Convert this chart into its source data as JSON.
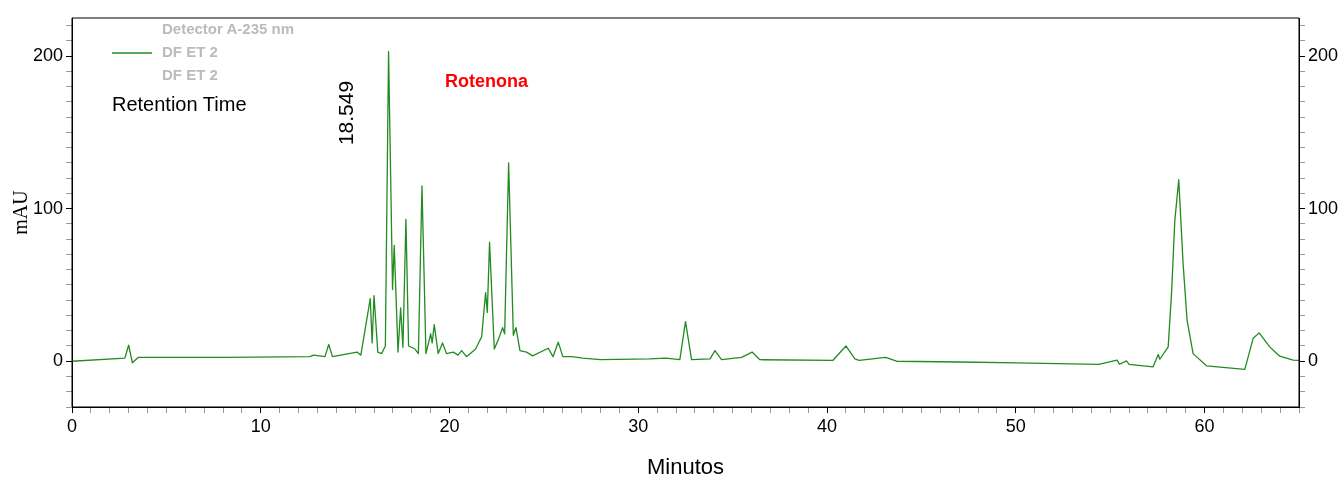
{
  "chart_data": {
    "type": "line",
    "xlabel": "Minutos",
    "ylabel": "mAU",
    "legend_title": "Detector A-235 nm",
    "legend": "top left",
    "grid": false,
    "marker": "none",
    "line_style": "solid",
    "xlim": [
      0,
      65
    ],
    "ylim": [
      -30,
      225
    ],
    "y2lim": [
      -30,
      225
    ],
    "xticks": [
      0,
      {
        "value": 1,
        "label": null
      },
      {
        "value": 2,
        "label": null
      },
      {
        "value": 3,
        "label": null
      },
      {
        "value": 4,
        "label": null
      },
      {
        "value": 5,
        "label": null
      },
      {
        "value": 6,
        "label": null
      },
      {
        "value": 7,
        "label": null
      },
      {
        "value": 8,
        "label": null
      },
      {
        "value": 9,
        "label": null
      },
      10,
      {
        "value": 11,
        "label": null
      },
      {
        "value": 12,
        "label": null
      },
      {
        "value": 13,
        "label": null
      },
      {
        "value": 14,
        "label": null
      },
      {
        "value": 15,
        "label": null
      },
      {
        "value": 16,
        "label": null
      },
      {
        "value": 17,
        "label": null
      },
      {
        "value": 18,
        "label": null
      },
      {
        "value": 19,
        "label": null
      },
      20,
      {
        "value": 21,
        "label": null
      },
      {
        "value": 22,
        "label": null
      },
      {
        "value": 23,
        "label": null
      },
      {
        "value": 24,
        "label": null
      },
      {
        "value": 25,
        "label": null
      },
      {
        "value": 26,
        "label": null
      },
      {
        "value": 27,
        "label": null
      },
      {
        "value": 28,
        "label": null
      },
      {
        "value": 29,
        "label": null
      },
      30,
      {
        "value": 31,
        "label": null
      },
      {
        "value": 32,
        "label": null
      },
      {
        "value": 33,
        "label": null
      },
      {
        "value": 34,
        "label": null
      },
      {
        "value": 35,
        "label": null
      },
      {
        "value": 36,
        "label": null
      },
      {
        "value": 37,
        "label": null
      },
      {
        "value": 38,
        "label": null
      },
      {
        "value": 39,
        "label": null
      },
      40,
      {
        "value": 41,
        "label": null
      },
      {
        "value": 42,
        "label": null
      },
      {
        "value": 43,
        "label": null
      },
      {
        "value": 44,
        "label": null
      },
      {
        "value": 45,
        "label": null
      },
      {
        "value": 46,
        "label": null
      },
      {
        "value": 47,
        "label": null
      },
      {
        "value": 48,
        "label": null
      },
      {
        "value": 49,
        "label": null
      },
      50,
      {
        "value": 51,
        "label": null
      },
      {
        "value": 52,
        "label": null
      },
      {
        "value": 53,
        "label": null
      },
      {
        "value": 54,
        "label": null
      },
      {
        "value": 55,
        "label": null
      },
      {
        "value": 56,
        "label": null
      },
      {
        "value": 57,
        "label": null
      },
      {
        "value": 58,
        "label": null
      },
      {
        "value": 59,
        "label": null
      },
      60,
      {
        "value": 61,
        "label": null
      },
      {
        "value": 62,
        "label": null
      },
      {
        "value": 63,
        "label": null
      },
      {
        "value": 64,
        "label": null
      },
      {
        "value": 65,
        "label": null
      }
    ],
    "yticks": [
      {
        "value": -30,
        "label": null
      },
      {
        "value": -20,
        "label": null
      },
      {
        "value": -10,
        "label": null
      },
      0,
      {
        "value": 10,
        "label": null
      },
      {
        "value": 20,
        "label": null
      },
      {
        "value": 30,
        "label": null
      },
      {
        "value": 40,
        "label": null
      },
      {
        "value": 50,
        "label": null
      },
      {
        "value": 60,
        "label": null
      },
      {
        "value": 70,
        "label": null
      },
      {
        "value": 80,
        "label": null
      },
      {
        "value": 90,
        "label": null
      },
      100,
      {
        "value": 110,
        "label": null
      },
      {
        "value": 120,
        "label": null
      },
      {
        "value": 130,
        "label": null
      },
      {
        "value": 140,
        "label": null
      },
      {
        "value": 150,
        "label": null
      },
      {
        "value": 160,
        "label": null
      },
      {
        "value": 170,
        "label": null
      },
      {
        "value": 180,
        "label": null
      },
      {
        "value": 190,
        "label": null
      },
      200,
      {
        "value": 210,
        "label": null
      },
      {
        "value": 220,
        "label": null
      }
    ],
    "y2ticks": [
      {
        "value": -30,
        "label": null
      },
      {
        "value": -20,
        "label": null
      },
      {
        "value": -10,
        "label": null
      },
      0,
      {
        "value": 10,
        "label": null
      },
      {
        "value": 20,
        "label": null
      },
      {
        "value": 30,
        "label": null
      },
      {
        "value": 40,
        "label": null
      },
      {
        "value": 50,
        "label": null
      },
      {
        "value": 60,
        "label": null
      },
      {
        "value": 70,
        "label": null
      },
      {
        "value": 80,
        "label": null
      },
      {
        "value": 90,
        "label": null
      },
      100,
      {
        "value": 110,
        "label": null
      },
      {
        "value": 120,
        "label": null
      },
      {
        "value": 130,
        "label": null
      },
      {
        "value": 140,
        "label": null
      },
      {
        "value": 150,
        "label": null
      },
      {
        "value": 160,
        "label": null
      },
      {
        "value": 170,
        "label": null
      },
      {
        "value": 180,
        "label": null
      },
      {
        "value": 190,
        "label": null
      },
      200,
      {
        "value": 210,
        "label": null
      },
      {
        "value": 220,
        "label": null
      }
    ],
    "annotations": [
      "DF ET 2",
      "Retention Time",
      "18.549",
      "Rotenona"
    ],
    "series": [
      {
        "name": "DF ET 2",
        "color": "#228b22",
        "x": [
          0,
          2.8,
          3.0,
          3.2,
          3.5,
          8,
          12.6,
          12.8,
          13.4,
          13.6,
          13.8,
          15.1,
          15.3,
          15.8,
          15.9,
          16.0,
          16.2,
          16.4,
          16.6,
          16.77,
          16.98,
          17.07,
          17.27,
          17.41,
          17.53,
          17.69,
          17.83,
          18.17,
          18.35,
          18.54,
          18.75,
          19.0,
          19.08,
          19.19,
          19.4,
          19.63,
          19.84,
          20.2,
          20.45,
          20.64,
          20.9,
          21.38,
          21.7,
          21.91,
          22.0,
          22.12,
          22.37,
          22.58,
          22.81,
          22.92,
          23.13,
          23.38,
          23.52,
          23.73,
          24.08,
          24.4,
          25.23,
          25.48,
          25.76,
          26.0,
          26.47,
          27.06,
          28,
          30.6,
          31.46,
          32.2,
          32.5,
          32.82,
          33.8,
          34.06,
          34.41,
          35.47,
          36.03,
          36.44,
          40.3,
          41.0,
          41.47,
          41.7,
          43.1,
          43.68,
          47,
          54.4,
          55.36,
          55.5,
          55.86,
          56,
          57.27,
          57.54,
          57.63,
          58.07,
          58.25,
          58.42,
          58.63,
          58.86,
          59.07,
          59.39,
          60.1,
          62.13,
          62.57,
          62.89,
          63.45,
          63.98,
          64.69,
          65
        ],
        "values": [
          0,
          2,
          10.5,
          -1,
          2.5,
          2.5,
          3,
          4,
          3,
          11,
          3,
          6,
          4,
          41,
          12,
          43,
          6,
          5,
          10,
          203,
          47,
          76,
          6,
          35,
          9,
          93,
          10,
          8,
          5,
          115,
          5,
          18,
          12,
          24,
          5,
          12,
          5,
          6,
          4,
          7,
          3,
          8,
          16,
          45,
          32,
          78,
          8,
          14,
          22,
          18,
          130,
          17,
          22,
          7,
          6,
          3.5,
          8.5,
          3,
          12.5,
          3,
          3,
          2,
          1,
          1.5,
          2,
          1,
          26,
          1,
          1.5,
          7,
          1,
          2.5,
          6,
          1,
          0.5,
          10,
          1.5,
          0.5,
          2.5,
          0,
          -0.5,
          -2,
          0.7,
          -2,
          0.2,
          -2,
          -3.7,
          4.4,
          1.3,
          9.4,
          45,
          92,
          119,
          64,
          27,
          5,
          -3,
          -5.3,
          15,
          18.6,
          9.4,
          3.3,
          0.7,
          0.5
        ]
      }
    ]
  }
}
